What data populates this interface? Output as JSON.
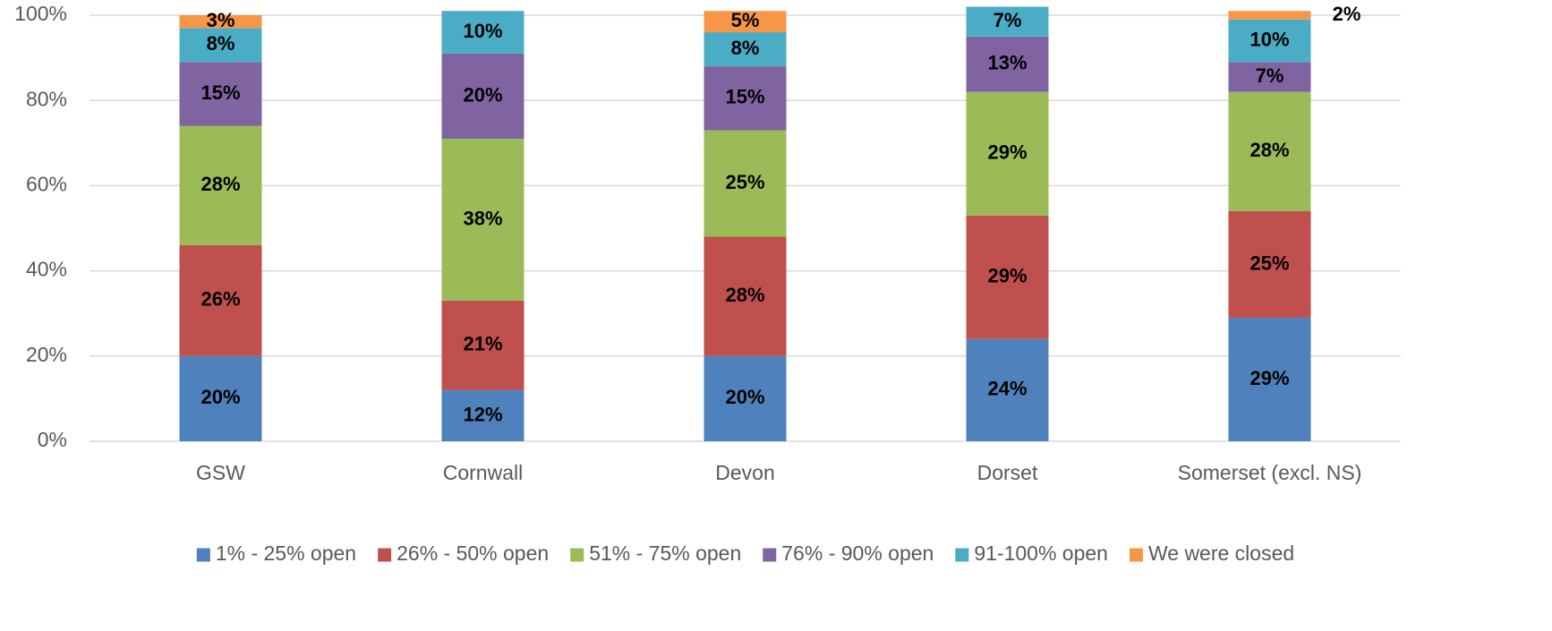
{
  "chart_data": {
    "type": "stacked_bar",
    "categories": [
      "GSW",
      "Cornwall",
      "Devon",
      "Dorset",
      "Somerset (excl. NS)"
    ],
    "series": [
      {
        "name": "1% - 25% open",
        "color": "#4f81bd",
        "values": [
          20,
          12,
          20,
          24,
          29
        ],
        "value_labels": [
          "20%",
          "12%",
          "20%",
          "24%",
          "29%"
        ]
      },
      {
        "name": "26% - 50% open",
        "color": "#c0504d",
        "values": [
          26,
          21,
          28,
          29,
          25
        ],
        "value_labels": [
          "26%",
          "21%",
          "28%",
          "29%",
          "25%"
        ]
      },
      {
        "name": "51% - 75% open",
        "color": "#9bbb59",
        "values": [
          28,
          38,
          25,
          29,
          28
        ],
        "value_labels": [
          "28%",
          "38%",
          "25%",
          "29%",
          "28%"
        ]
      },
      {
        "name": "76% - 90% open",
        "color": "#8064a2",
        "values": [
          15,
          20,
          15,
          13,
          7
        ],
        "value_labels": [
          "15%",
          "20%",
          "15%",
          "13%",
          "7%"
        ]
      },
      {
        "name": "91-100% open",
        "color": "#4bacc6",
        "values": [
          8,
          10,
          8,
          7,
          10
        ],
        "value_labels": [
          "8%",
          "10%",
          "8%",
          "7%",
          "10%"
        ]
      },
      {
        "name": "We were closed",
        "color": "#f79646",
        "values": [
          3,
          null,
          5,
          null,
          2
        ],
        "value_labels": [
          "3%",
          null,
          "5%",
          null,
          "2%"
        ]
      }
    ],
    "ylim": [
      0,
      100
    ],
    "yticks": [
      {
        "value": 0,
        "label": "0%"
      },
      {
        "value": 20,
        "label": "20%"
      },
      {
        "value": 40,
        "label": "40%"
      },
      {
        "value": 60,
        "label": "60%"
      },
      {
        "value": 80,
        "label": "80%"
      },
      {
        "value": 100,
        "label": "100%"
      }
    ],
    "grid": true,
    "legend": "bottom"
  }
}
